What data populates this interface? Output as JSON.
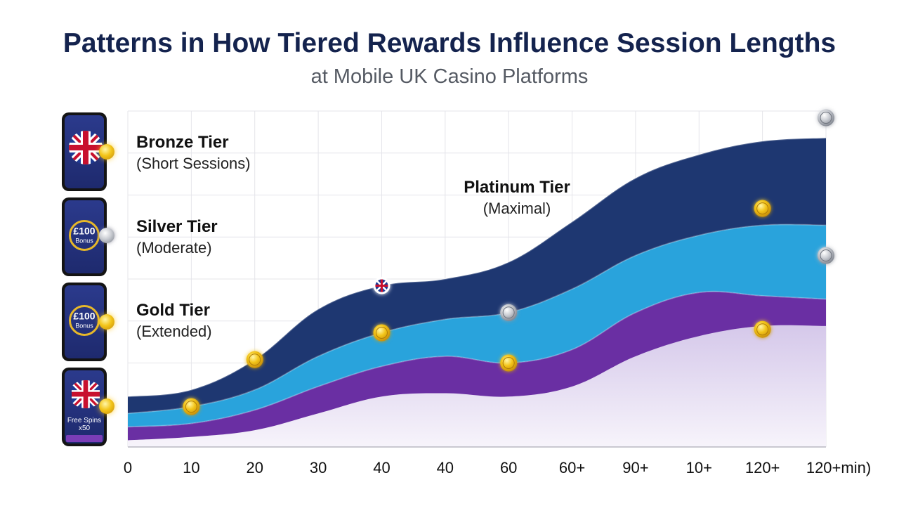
{
  "title": "Patterns in How Tiered Rewards Influence Session Lengths",
  "subtitle": "at Mobile UK Casino Platforms",
  "colors": {
    "title": "#14234e",
    "platinum": "#1e3771",
    "gold": "#29a3dc",
    "silver": "#6a2fa3",
    "bronze_fill": "#e3daf0",
    "coin_gold": "#f3c51a",
    "coin_silver": "#b9bdc6"
  },
  "tier_labels": [
    {
      "name": "Bronze Tier",
      "desc": "(Short Sessions)"
    },
    {
      "name": "Silver Tier",
      "desc": "(Moderate)"
    },
    {
      "name": "Gold Tier",
      "desc": "(Extended)"
    },
    {
      "name": "Platinum Tier",
      "desc": "(Maximal)"
    }
  ],
  "phones": [
    {
      "icon": "uk-flag-icon",
      "badge": "gold-coin-icon"
    },
    {
      "icon": "bonus-ring-icon",
      "main": "£100",
      "small": "Bonus",
      "badge": "silver-coin-icon"
    },
    {
      "icon": "bonus-ring-icon",
      "main": "£100",
      "small": "Bonus",
      "badge": "gold-coin-icon"
    },
    {
      "icon": "uk-flag-icon",
      "text_line1": "Free Spins",
      "text_line2": "x50",
      "badge": "gold-coin-icon"
    }
  ],
  "chart_data": {
    "type": "area",
    "title": "Patterns in How Tiered Rewards Influence Session Lengths",
    "subtitle": "at Mobile UK Casino Platforms",
    "categories": [
      "0",
      "10",
      "20",
      "30",
      "40",
      "40",
      "60",
      "60+",
      "90+",
      "10+",
      "120+",
      "120+min)"
    ],
    "ylim": [
      0,
      100
    ],
    "grid": true,
    "series": [
      {
        "name": "Platinum Tier",
        "top": [
          15,
          17,
          26,
          41,
          48,
          50,
          55,
          67,
          80,
          87,
          91,
          92
        ],
        "bottom": [
          10,
          12,
          17,
          27,
          34,
          38,
          40,
          47,
          57,
          63,
          66,
          66
        ],
        "color": "#1e3771"
      },
      {
        "name": "Gold Tier",
        "top": [
          10,
          12,
          17,
          27,
          34,
          38,
          40,
          47,
          57,
          63,
          66,
          66
        ],
        "bottom": [
          6,
          7,
          11,
          18,
          24,
          27,
          25,
          29,
          40,
          46,
          45,
          44
        ],
        "color": "#29a3dc"
      },
      {
        "name": "Silver Tier",
        "top": [
          6,
          7,
          11,
          18,
          24,
          27,
          25,
          29,
          40,
          46,
          45,
          44
        ],
        "bottom": [
          2,
          3,
          5,
          10,
          15,
          16,
          15,
          18,
          27,
          33,
          36,
          36
        ],
        "color": "#6a2fa3"
      },
      {
        "name": "Bronze Tier",
        "top": [
          2,
          3,
          5,
          10,
          15,
          16,
          15,
          18,
          27,
          33,
          36,
          36
        ],
        "bottom": [
          0,
          0,
          0,
          0,
          0,
          0,
          0,
          0,
          0,
          0,
          0,
          0
        ],
        "color": "#e3daf0"
      }
    ],
    "markers": [
      {
        "x": 1,
        "y": 12,
        "kind": "gold"
      },
      {
        "x": 2,
        "y": 26,
        "kind": "gold"
      },
      {
        "x": 4,
        "y": 34,
        "kind": "gold"
      },
      {
        "x": 4,
        "y": 48,
        "kind": "flag"
      },
      {
        "x": 6,
        "y": 25,
        "kind": "gold"
      },
      {
        "x": 6,
        "y": 40,
        "kind": "silver"
      },
      {
        "x": 10,
        "y": 35,
        "kind": "gold"
      },
      {
        "x": 10,
        "y": 71,
        "kind": "gold"
      },
      {
        "x": 11,
        "y": 57,
        "kind": "silver"
      },
      {
        "x": 11,
        "y": 98,
        "kind": "silver"
      }
    ]
  }
}
